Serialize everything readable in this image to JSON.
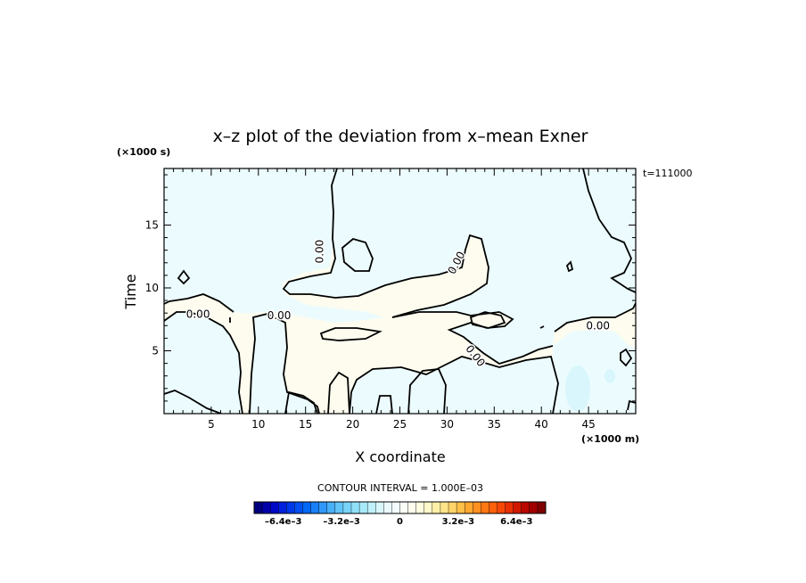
{
  "chart_data": {
    "type": "contour",
    "title": "x–z plot of the deviation from x–mean Exner",
    "xlabel": "X coordinate",
    "ylabel": "Time",
    "x_unit": "(×1000 m)",
    "y_unit": "(×1000 s)",
    "time_label": "t=111000",
    "xlim": [
      0,
      50
    ],
    "ylim": [
      0,
      19.5
    ],
    "x_ticks": [
      "5",
      "10",
      "15",
      "20",
      "25",
      "30",
      "35",
      "40",
      "45"
    ],
    "x_tick_values": [
      5,
      10,
      15,
      20,
      25,
      30,
      35,
      40,
      45
    ],
    "y_ticks": [
      "5",
      "10",
      "15"
    ],
    "y_tick_values": [
      5,
      10,
      15
    ],
    "contour_interval": "CONTOUR INTERVAL = 1.000E–03",
    "contour_labels": [
      {
        "text": "0.00",
        "x": 3.6,
        "y": 7.9
      },
      {
        "text": "0.00",
        "x": 12.2,
        "y": 7.8
      },
      {
        "text": "0.00",
        "x": 16.5,
        "y": 12.9,
        "rotate": -90
      },
      {
        "text": "0.00",
        "x": 31.0,
        "y": 12.0,
        "rotate": -62
      },
      {
        "text": "0.00",
        "x": 33.0,
        "y": 4.6,
        "rotate": 52
      },
      {
        "text": "0.00",
        "x": 46.0,
        "y": 7.0
      }
    ],
    "colorbar": {
      "tick_labels": [
        "–6.4e–3",
        "–3.2e–3",
        "0",
        "3.2e–3",
        "6.4e–3"
      ],
      "tick_values": [
        -0.0064,
        -0.0032,
        0,
        0.0032,
        0.0064
      ],
      "range": [
        -0.008,
        0.008
      ],
      "colors": [
        "#00007f",
        "#0000a8",
        "#0008c8",
        "#0020dc",
        "#0038e8",
        "#0050f0",
        "#0068f4",
        "#1a80f8",
        "#3098f8",
        "#48b0f8",
        "#60c4f8",
        "#78d4f8",
        "#90e0f8",
        "#a8eaf8",
        "#c0f0fa",
        "#d8f6fc",
        "#eafafe",
        "#f4fcfe",
        "#fbfef6",
        "#fffdee",
        "#fffce0",
        "#fff8c8",
        "#fff0a8",
        "#ffe488",
        "#ffd468",
        "#ffc048",
        "#ffa830",
        "#ff9020",
        "#ff7814",
        "#ff600c",
        "#f84808",
        "#e83004",
        "#d01800",
        "#b80800",
        "#a00000",
        "#7f0000"
      ],
      "neutral_color": "#ffffff",
      "neg_region_color": "#ecfcfe",
      "pos_region_color": "#fdfcee",
      "strong_neg_color": "#d8f6fc"
    }
  }
}
